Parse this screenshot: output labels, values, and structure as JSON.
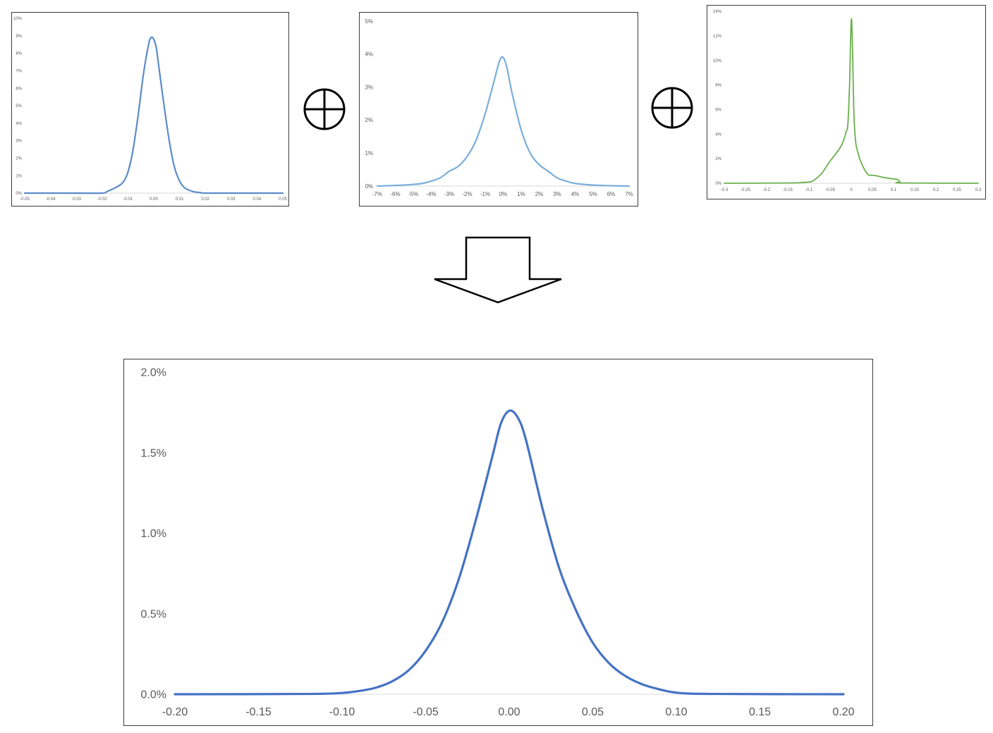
{
  "colors": {
    "panel1_line": "#5b8cc8",
    "panel2_line": "#7aaedb",
    "panel3_line": "#6ab04c",
    "result_line": "#4472c4",
    "axis_text": "#595959",
    "zero_line": "#d9d9d9"
  },
  "icons": {
    "operator_1": "circled-plus-icon",
    "operator_2": "circled-plus-icon",
    "result_arrow": "down-arrow-icon"
  },
  "chart_data": [
    {
      "id": "panel1",
      "type": "line",
      "title": "",
      "xlabel": "",
      "ylabel": "",
      "grid": false,
      "xlim": [
        -0.05,
        0.05
      ],
      "ylim": [
        0,
        0.1
      ],
      "x_ticks": [
        "-0.05",
        "-0.04",
        "-0.03",
        "-0.02",
        "-0.01",
        "0.00",
        "0.01",
        "0.02",
        "0.03",
        "0.04",
        "0.05"
      ],
      "y_ticks": [
        "0%",
        "1%",
        "2%",
        "3%",
        "4%",
        "5%",
        "6%",
        "7%",
        "8%",
        "9%",
        "10%"
      ],
      "series": [
        {
          "x": [
            -0.05,
            -0.03,
            -0.02,
            -0.018,
            -0.015,
            -0.012,
            -0.01,
            -0.008,
            -0.006,
            -0.004,
            -0.002,
            -0.001,
            0.0,
            0.001,
            0.002,
            0.004,
            0.006,
            0.008,
            0.01,
            0.012,
            0.015,
            0.018,
            0.02,
            0.03,
            0.05
          ],
          "y": [
            0,
            0,
            0,
            0.001,
            0.003,
            0.006,
            0.012,
            0.025,
            0.045,
            0.068,
            0.085,
            0.089,
            0.088,
            0.083,
            0.072,
            0.05,
            0.03,
            0.015,
            0.007,
            0.003,
            0.001,
            0.0003,
            0,
            0,
            0
          ]
        }
      ]
    },
    {
      "id": "panel2",
      "type": "line",
      "title": "",
      "xlabel": "",
      "ylabel": "",
      "grid": false,
      "xlim": [
        -0.07,
        0.07
      ],
      "ylim": [
        0,
        0.05
      ],
      "x_ticks": [
        "-7%",
        "-6%",
        "-5%",
        "-4%",
        "-3%",
        "-2%",
        "-1%",
        "0%",
        "1%",
        "2%",
        "3%",
        "4%",
        "5%",
        "6%",
        "7%"
      ],
      "y_ticks": [
        "0%",
        "1%",
        "2%",
        "3%",
        "4%",
        "5%"
      ],
      "series": [
        {
          "x": [
            -0.07,
            -0.06,
            -0.05,
            -0.045,
            -0.04,
            -0.035,
            -0.03,
            -0.025,
            -0.02,
            -0.015,
            -0.01,
            -0.005,
            -0.002,
            0.0,
            0.002,
            0.005,
            0.01,
            0.015,
            0.02,
            0.025,
            0.03,
            0.035,
            0.04,
            0.05,
            0.06,
            0.07
          ],
          "y": [
            0,
            0.0002,
            0.0005,
            0.0008,
            0.0015,
            0.0025,
            0.0045,
            0.006,
            0.009,
            0.014,
            0.022,
            0.032,
            0.038,
            0.039,
            0.036,
            0.028,
            0.017,
            0.01,
            0.0065,
            0.0045,
            0.0025,
            0.0015,
            0.0008,
            0.0003,
            0.0001,
            0
          ]
        }
      ]
    },
    {
      "id": "panel3",
      "type": "line",
      "title": "",
      "xlabel": "",
      "ylabel": "",
      "grid": false,
      "xlim": [
        -0.3,
        0.3
      ],
      "ylim": [
        0,
        0.14
      ],
      "x_ticks": [
        "-0.3",
        "-0.25",
        "-0.2",
        "-0.15",
        "-0.1",
        "-0.05",
        "0",
        "0.05",
        "0.1",
        "0.15",
        "0.2",
        "0.25",
        "0.3"
      ],
      "y_ticks": [
        "0%",
        "2%",
        "4%",
        "6%",
        "8%",
        "10%",
        "12%",
        "14%"
      ],
      "series": [
        {
          "x": [
            -0.3,
            -0.15,
            -0.12,
            -0.1,
            -0.09,
            -0.07,
            -0.05,
            -0.03,
            -0.02,
            -0.012,
            -0.008,
            -0.004,
            0.0,
            0.003,
            0.006,
            0.01,
            0.015,
            0.02,
            0.03,
            0.04,
            0.05,
            0.06,
            0.08,
            0.1,
            0.11,
            0.115,
            0.12,
            0.3
          ],
          "y": [
            0,
            0.0002,
            0.0005,
            0.001,
            0.002,
            0.008,
            0.018,
            0.027,
            0.033,
            0.042,
            0.048,
            0.08,
            0.133,
            0.11,
            0.06,
            0.035,
            0.026,
            0.02,
            0.012,
            0.007,
            0.0065,
            0.006,
            0.0045,
            0.0035,
            0.003,
            0.001,
            0.0002,
            0
          ]
        }
      ]
    },
    {
      "id": "result",
      "type": "line",
      "title": "",
      "xlabel": "",
      "ylabel": "",
      "grid": false,
      "xlim": [
        -0.2,
        0.2
      ],
      "ylim": [
        0,
        0.02
      ],
      "x_ticks": [
        "-0.20",
        "-0.15",
        "-0.10",
        "-0.05",
        "0.00",
        "0.05",
        "0.10",
        "0.15",
        "0.20"
      ],
      "y_ticks": [
        "0.0%",
        "0.5%",
        "1.0%",
        "1.5%",
        "2.0%"
      ],
      "series": [
        {
          "x": [
            -0.2,
            -0.12,
            -0.1,
            -0.09,
            -0.08,
            -0.07,
            -0.06,
            -0.05,
            -0.04,
            -0.03,
            -0.02,
            -0.01,
            -0.005,
            0.0,
            0.005,
            0.01,
            0.02,
            0.03,
            0.04,
            0.05,
            0.06,
            0.07,
            0.08,
            0.09,
            0.1,
            0.12,
            0.2
          ],
          "y": [
            0,
            2e-05,
            8e-05,
            0.0002,
            0.0004,
            0.0008,
            0.0015,
            0.0027,
            0.0045,
            0.0072,
            0.0108,
            0.0148,
            0.0168,
            0.0176,
            0.0172,
            0.0158,
            0.0115,
            0.0078,
            0.0052,
            0.0032,
            0.0019,
            0.0011,
            0.0006,
            0.0003,
            0.0001,
            2e-05,
            0
          ]
        }
      ]
    }
  ]
}
